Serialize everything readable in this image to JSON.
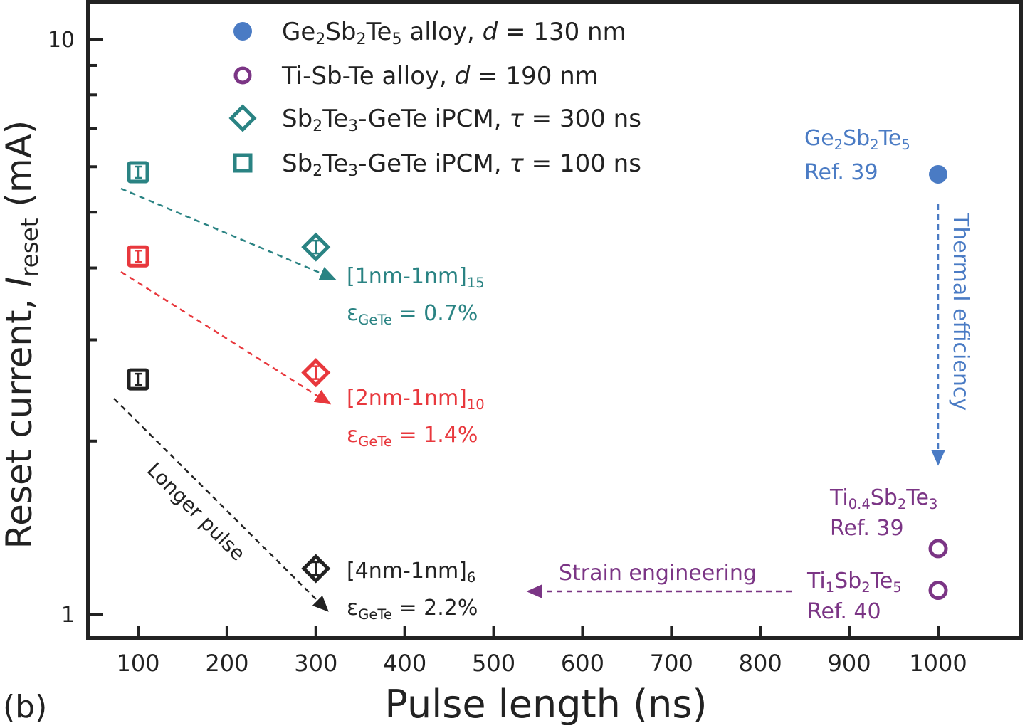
{
  "chart_data": {
    "type": "scatter",
    "panel_label": "(b)",
    "xlabel": "Pulse length (ns)",
    "ylabel_parts": [
      [
        "Reset current, ",
        "n"
      ],
      [
        "I",
        "i"
      ],
      [
        "reset",
        "sub"
      ],
      [
        "  (mA)",
        "n"
      ]
    ],
    "xlim": [
      42,
      1090
    ],
    "ylim": [
      0.91,
      11.6
    ],
    "yscale": "log",
    "grid": false,
    "xticks": [
      100,
      200,
      300,
      400,
      500,
      600,
      700,
      800,
      900,
      1000
    ],
    "yticks": [
      1,
      10
    ],
    "legend_position": "top-center",
    "colors": {
      "blue": "#4a7bc4",
      "purple": "#7b3585",
      "teal": "#2a8383",
      "red": "#e8383d",
      "black": "#222222"
    },
    "series": [
      {
        "legend": [
          [
            "Ge",
            "n"
          ],
          [
            "2",
            "sub"
          ],
          [
            "Sb",
            "n"
          ],
          [
            "2",
            "sub"
          ],
          [
            "Te",
            "n"
          ],
          [
            "5",
            "sub"
          ],
          [
            " alloy, ",
            "n"
          ],
          [
            "d",
            "i"
          ],
          [
            " = 130 nm",
            "n"
          ]
        ],
        "marker": "filled-circle",
        "color": "#4a7bc4",
        "points": [
          {
            "x": 1000,
            "y": 5.82
          }
        ]
      },
      {
        "legend": [
          [
            "Ti-Sb-Te alloy, ",
            "n"
          ],
          [
            "d",
            "i"
          ],
          [
            " = 190 nm",
            "n"
          ]
        ],
        "marker": "open-circle",
        "color": "#7b3585",
        "points": [
          {
            "x": 1000,
            "y": 1.3
          },
          {
            "x": 1000,
            "y": 1.1
          }
        ]
      },
      {
        "legend": [
          [
            "Sb",
            "n"
          ],
          [
            "2",
            "sub"
          ],
          [
            "Te",
            "n"
          ],
          [
            "3",
            "sub"
          ],
          [
            "-GeTe iPCM, ",
            "n"
          ],
          [
            "τ",
            "i"
          ],
          [
            " = 300 ns",
            "n"
          ]
        ],
        "marker": "open-diamond",
        "color": "#2a8383",
        "points": [
          {
            "x": 300,
            "y": 4.35,
            "color": "#2a8383"
          },
          {
            "x": 300,
            "y": 2.63,
            "color": "#e8383d"
          },
          {
            "x": 300,
            "y": 1.2,
            "color": "#222222"
          }
        ]
      },
      {
        "legend": [
          [
            "Sb",
            "n"
          ],
          [
            "2",
            "sub"
          ],
          [
            "Te",
            "n"
          ],
          [
            "3",
            "sub"
          ],
          [
            "-GeTe iPCM, ",
            "n"
          ],
          [
            "τ",
            "i"
          ],
          [
            " = 100 ns",
            "n"
          ]
        ],
        "marker": "open-square",
        "color": "#2a8383",
        "points": [
          {
            "x": 100,
            "y": 5.87,
            "color": "#2a8383"
          },
          {
            "x": 100,
            "y": 4.19,
            "color": "#e8383d"
          },
          {
            "x": 100,
            "y": 2.56,
            "color": "#222222"
          }
        ]
      }
    ],
    "annotations": [
      {
        "lines": [
          [
            [
              "Ge",
              "n"
            ],
            [
              "2",
              "sub"
            ],
            [
              "Sb",
              "n"
            ],
            [
              "2",
              "sub"
            ],
            [
              "Te",
              "n"
            ],
            [
              "5",
              "sub"
            ]
          ],
          [
            [
              "Ref. 39",
              "n"
            ]
          ]
        ],
        "color": "#4a7bc4"
      },
      {
        "lines": [
          [
            [
              "Ti",
              "n"
            ],
            [
              "0.4",
              "sub"
            ],
            [
              "Sb",
              "n"
            ],
            [
              "2",
              "sub"
            ],
            [
              "Te",
              "n"
            ],
            [
              "3",
              "sub"
            ]
          ],
          [
            [
              "Ref. 39",
              "n"
            ]
          ]
        ],
        "color": "#7b3585"
      },
      {
        "lines": [
          [
            [
              "Ti",
              "n"
            ],
            [
              "1",
              "sub"
            ],
            [
              "Sb",
              "n"
            ],
            [
              "2",
              "sub"
            ],
            [
              "Te",
              "n"
            ],
            [
              "5",
              "sub"
            ]
          ],
          [
            [
              "Ref. 40",
              "n"
            ]
          ]
        ],
        "color": "#7b3585"
      },
      {
        "lines": [
          [
            [
              "[1nm-1nm]",
              "n"
            ],
            [
              "15",
              "sub"
            ]
          ],
          [
            [
              "ε",
              "n"
            ],
            [
              "GeTe",
              "sub"
            ],
            [
              " = 0.7%",
              "n"
            ]
          ]
        ],
        "color": "#2a8383"
      },
      {
        "lines": [
          [
            [
              "[2nm-1nm]",
              "n"
            ],
            [
              "10",
              "sub"
            ]
          ],
          [
            [
              "ε",
              "n"
            ],
            [
              "GeTe",
              "sub"
            ],
            [
              " = 1.4%",
              "n"
            ]
          ]
        ],
        "color": "#e8383d"
      },
      {
        "lines": [
          [
            [
              "[4nm-1nm]",
              "n"
            ],
            [
              "6",
              "sub"
            ]
          ],
          [
            [
              "ε",
              "n"
            ],
            [
              "GeTe",
              "sub"
            ],
            [
              " = 2.2%",
              "n"
            ]
          ]
        ],
        "color": "#222222"
      },
      {
        "lines": [
          [
            [
              "Thermal efficiency",
              "n"
            ]
          ]
        ],
        "color": "#4a7bc4"
      },
      {
        "lines": [
          [
            [
              "Strain engineering",
              "n"
            ]
          ]
        ],
        "color": "#7b3585"
      },
      {
        "lines": [
          [
            [
              "Longer pulse",
              "n"
            ]
          ]
        ],
        "color": "#222222"
      }
    ]
  }
}
